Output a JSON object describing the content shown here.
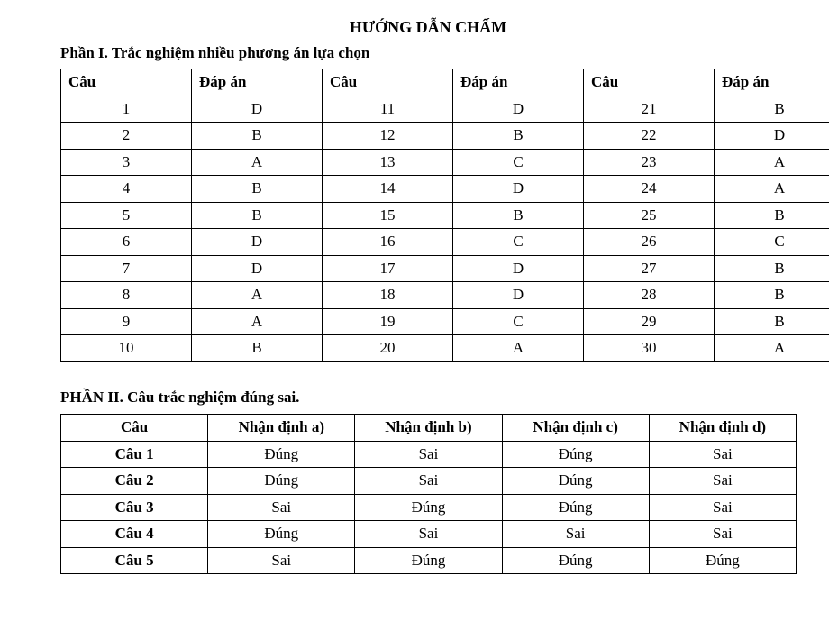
{
  "title": "HƯỚNG DẪN CHẤM",
  "part1": {
    "heading": "Phần I. Trắc nghiệm nhiều phương án lựa chọn",
    "headers": [
      "Câu",
      "Đáp án",
      "Câu",
      "Đáp án",
      "Câu",
      "Đáp án"
    ],
    "rows": [
      [
        "1",
        "D",
        "11",
        "D",
        "21",
        "B"
      ],
      [
        "2",
        "B",
        "12",
        "B",
        "22",
        "D"
      ],
      [
        "3",
        "A",
        "13",
        "C",
        "23",
        "A"
      ],
      [
        "4",
        "B",
        "14",
        "D",
        "24",
        "A"
      ],
      [
        "5",
        "B",
        "15",
        "B",
        "25",
        "B"
      ],
      [
        "6",
        "D",
        "16",
        "C",
        "26",
        "C"
      ],
      [
        "7",
        "D",
        "17",
        "D",
        "27",
        "B"
      ],
      [
        "8",
        "A",
        "18",
        "D",
        "28",
        "B"
      ],
      [
        "9",
        "A",
        "19",
        "C",
        "29",
        "B"
      ],
      [
        "10",
        "B",
        "20",
        "A",
        "30",
        "A"
      ]
    ]
  },
  "part2": {
    "heading": "PHẦN II. Câu trắc nghiệm đúng sai.",
    "headers": [
      "Câu",
      "Nhận định a)",
      "Nhận định b)",
      "Nhận định c)",
      "Nhận định d)"
    ],
    "rows": [
      [
        "Câu 1",
        "Đúng",
        "Sai",
        "Đúng",
        "Sai"
      ],
      [
        "Câu 2",
        "Đúng",
        "Sai",
        "Đúng",
        "Sai"
      ],
      [
        "Câu 3",
        "Sai",
        "Đúng",
        "Đúng",
        "Sai"
      ],
      [
        "Câu 4",
        "Đúng",
        "Sai",
        "Sai",
        "Sai"
      ],
      [
        "Câu 5",
        "Sai",
        "Đúng",
        "Đúng",
        "Đúng"
      ]
    ]
  }
}
